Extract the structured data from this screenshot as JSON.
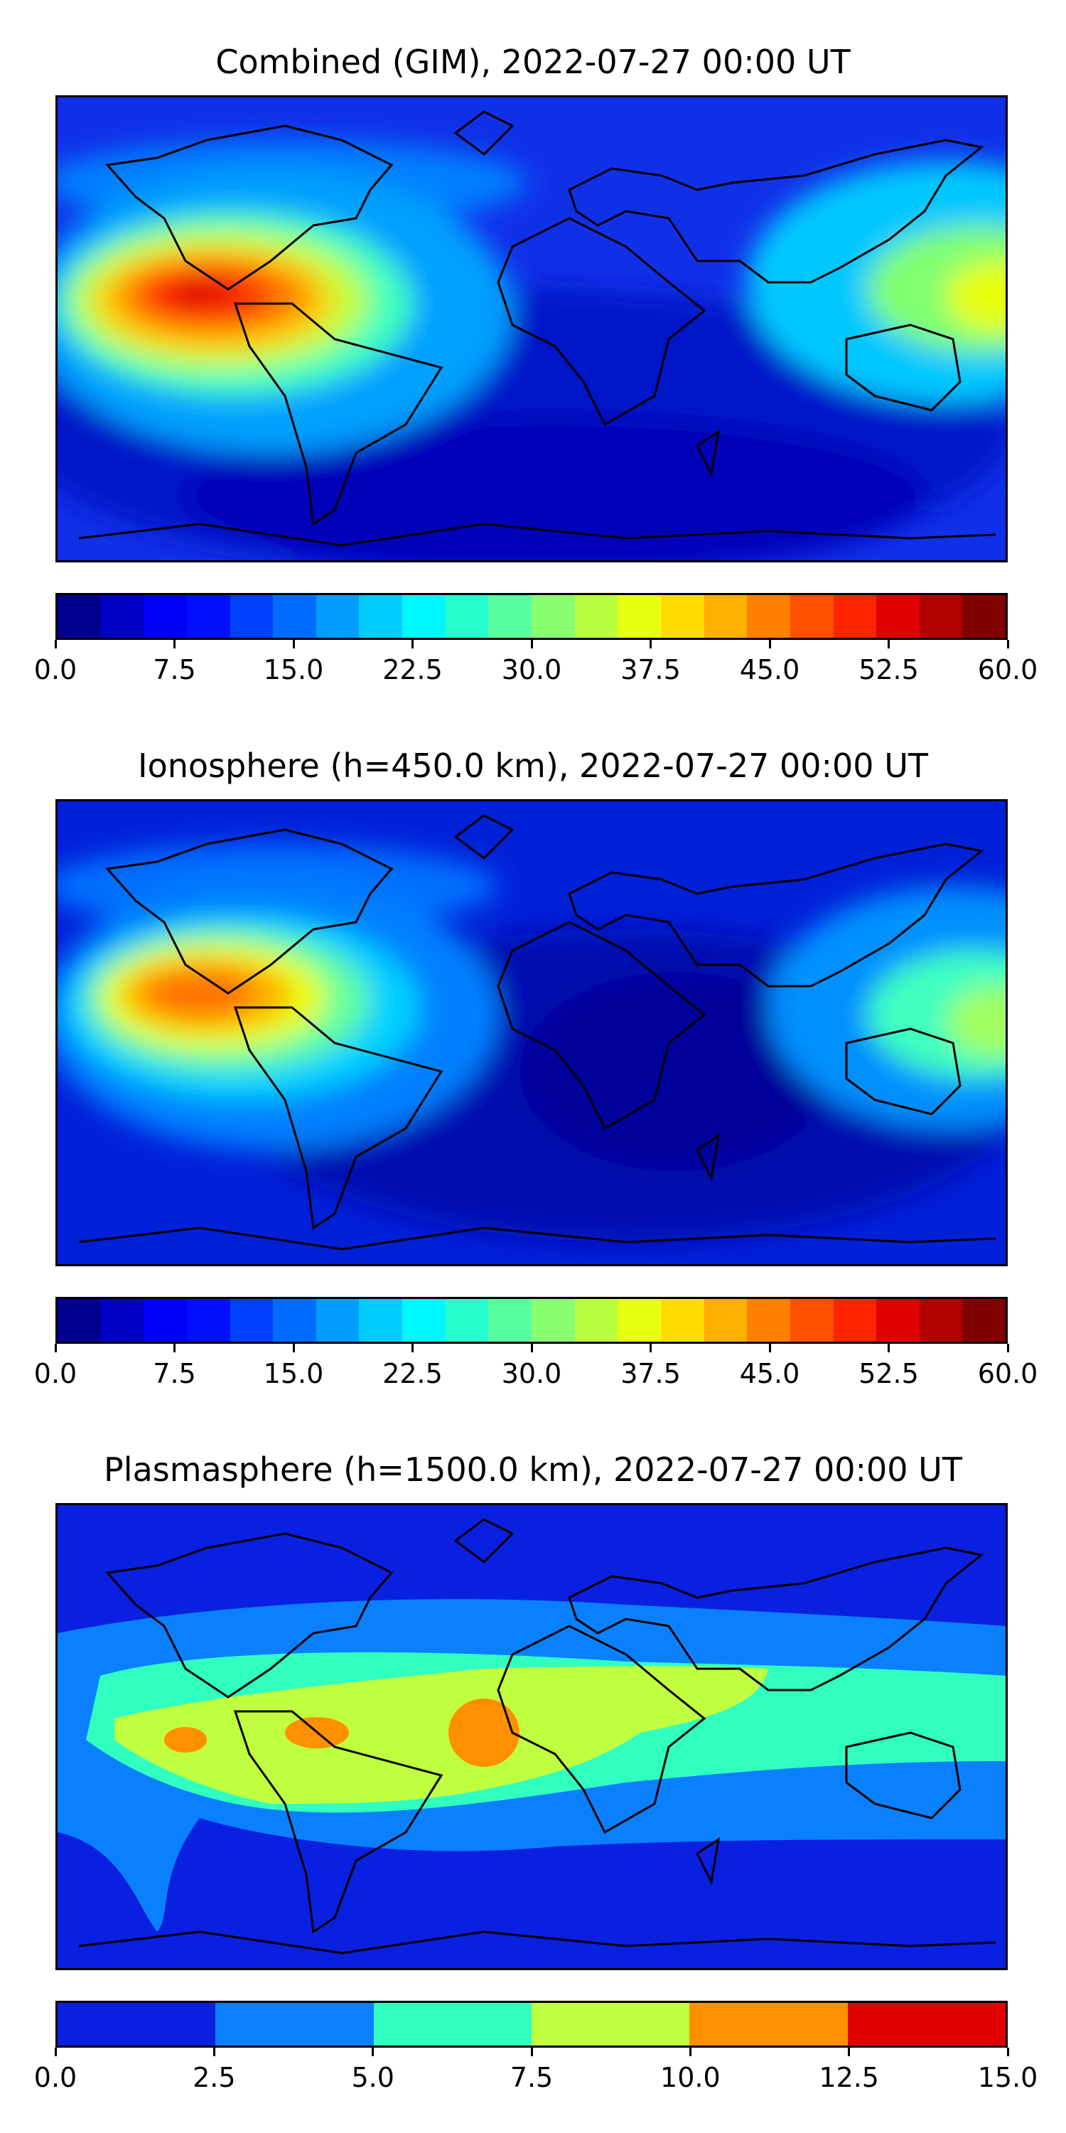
{
  "panels": [
    {
      "id": "combined",
      "title": "Combined (GIM), 2022-07-27 00:00 UT",
      "background_color": "#1020d8",
      "colorbar": {
        "range": [
          0,
          60
        ],
        "step": 2.5,
        "tick_labels": [
          "0.0",
          "7.5",
          "15.0",
          "22.5",
          "30.0",
          "37.5",
          "45.0",
          "52.5",
          "60.0"
        ],
        "colors": [
          "#00008f",
          "#0000c4",
          "#0000f8",
          "#0010ff",
          "#0040ff",
          "#006cff",
          "#009cff",
          "#00ccff",
          "#00f8ff",
          "#28ffd0",
          "#58ffa0",
          "#88ff70",
          "#b8ff40",
          "#e8ff10",
          "#ffdc00",
          "#ffb000",
          "#ff8000",
          "#ff5000",
          "#ff2400",
          "#e00000",
          "#b00000",
          "#800000"
        ]
      },
      "features": [
        {
          "name": "tec-peak-east-pacific",
          "value": 55
        },
        {
          "name": "tec-high-west-pacific",
          "value": 37.5
        },
        {
          "name": "tec-low-south-atlantic-south-indian",
          "value": 5
        }
      ]
    },
    {
      "id": "ionosphere",
      "title": "Ionosphere  (h=450.0 km), 2022-07-27 00:00 UT",
      "background_color": "#0018c8",
      "colorbar": {
        "range": [
          0,
          60
        ],
        "step": 2.5,
        "tick_labels": [
          "0.0",
          "7.5",
          "15.0",
          "22.5",
          "30.0",
          "37.5",
          "45.0",
          "52.5",
          "60.0"
        ],
        "colors": [
          "#00008f",
          "#0000c4",
          "#0000f8",
          "#0010ff",
          "#0040ff",
          "#006cff",
          "#009cff",
          "#00ccff",
          "#00f8ff",
          "#28ffd0",
          "#58ffa0",
          "#88ff70",
          "#b8ff40",
          "#e8ff10",
          "#ffdc00",
          "#ffb000",
          "#ff8000",
          "#ff5000",
          "#ff2400",
          "#e00000",
          "#b00000",
          "#800000"
        ]
      },
      "features": [
        {
          "name": "tec-peak-east-pacific",
          "value": 45
        },
        {
          "name": "tec-high-west-pacific",
          "value": 27.5
        },
        {
          "name": "tec-low-africa-indian-ocean",
          "value": 2.5
        }
      ]
    },
    {
      "id": "plasmasphere",
      "title": "Plasmasphere (h=1500.0 km), 2022-07-27 00:00 UT",
      "background_color": "#0a20e0",
      "colorbar": {
        "range": [
          0,
          15
        ],
        "step": 2.5,
        "tick_labels": [
          "0.0",
          "2.5",
          "5.0",
          "7.5",
          "10.0",
          "12.5",
          "15.0"
        ],
        "colors": [
          "#0a20e0",
          "#0a80ff",
          "#30ffc0",
          "#c0ff40",
          "#ff9000",
          "#e00000"
        ]
      },
      "features": [
        {
          "name": "equatorial-band",
          "value": 7.5
        },
        {
          "name": "tec-peak-africa-atlantic",
          "value": 10
        },
        {
          "name": "polar-region",
          "value": 0
        }
      ]
    }
  ]
}
